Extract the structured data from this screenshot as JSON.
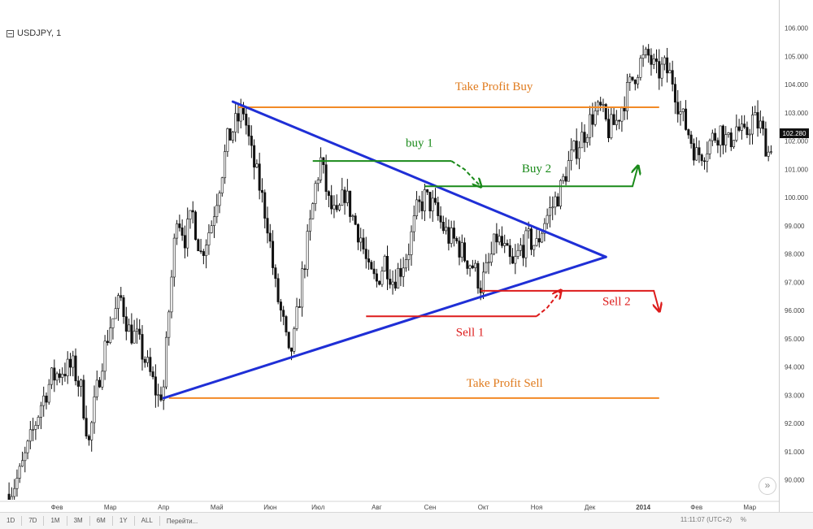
{
  "header": {
    "symbol": "USDJPY, 1",
    "collapse_icon": "minus-box-icon"
  },
  "chart_data": {
    "type": "candlestick",
    "ylim": [
      89.3,
      107.0
    ],
    "y_ticks": [
      "106.000",
      "105.000",
      "104.000",
      "103.000",
      "102.000",
      "101.000",
      "100.000",
      "99.000",
      "98.000",
      "97.000",
      "96.000",
      "95.000",
      "94.000",
      "93.000",
      "92.000",
      "91.000",
      "90.000"
    ],
    "y_tick_values": [
      106,
      105,
      104,
      103,
      102,
      101,
      100,
      99,
      98,
      97,
      96,
      95,
      94,
      93,
      92,
      91,
      90
    ],
    "x_ticks": [
      {
        "label": "Фев",
        "x": 2.1
      },
      {
        "label": "Мар",
        "x": 3.1
      },
      {
        "label": "Апр",
        "x": 4.1
      },
      {
        "label": "Май",
        "x": 5.1
      },
      {
        "label": "Июн",
        "x": 6.1
      },
      {
        "label": "Июл",
        "x": 7.0
      },
      {
        "label": "Авг",
        "x": 8.1
      },
      {
        "label": "Сен",
        "x": 9.1
      },
      {
        "label": "Окт",
        "x": 10.1
      },
      {
        "label": "Ноя",
        "x": 11.1
      },
      {
        "label": "Дек",
        "x": 12.1
      },
      {
        "label": "2014",
        "x": 13.1
      },
      {
        "label": "Фев",
        "x": 14.1
      },
      {
        "label": "Мар",
        "x": 15.1
      }
    ],
    "last_price": "102.280",
    "last_price_value": 102.28,
    "price_path": [
      [
        1.2,
        89.5
      ],
      [
        1.4,
        90.2
      ],
      [
        1.6,
        91.4
      ],
      [
        1.8,
        92.7
      ],
      [
        2.0,
        93.6
      ],
      [
        2.2,
        93.9
      ],
      [
        2.4,
        94.0
      ],
      [
        2.55,
        93.2
      ],
      [
        2.7,
        91.3
      ],
      [
        2.8,
        92.6
      ],
      [
        2.95,
        94.3
      ],
      [
        3.1,
        95.5
      ],
      [
        3.3,
        96.4
      ],
      [
        3.45,
        95.3
      ],
      [
        3.6,
        95.0
      ],
      [
        3.8,
        94.0
      ],
      [
        4.0,
        92.9
      ],
      [
        4.1,
        93.3
      ],
      [
        4.2,
        96.0
      ],
      [
        4.35,
        99.5
      ],
      [
        4.5,
        98.6
      ],
      [
        4.65,
        99.4
      ],
      [
        4.8,
        98.0
      ],
      [
        5.0,
        99.1
      ],
      [
        5.15,
        100.5
      ],
      [
        5.3,
        102.0
      ],
      [
        5.45,
        102.6
      ],
      [
        5.6,
        103.1
      ],
      [
        5.75,
        101.5
      ],
      [
        5.9,
        100.4
      ],
      [
        6.05,
        99.1
      ],
      [
        6.2,
        96.8
      ],
      [
        6.35,
        95.5
      ],
      [
        6.45,
        94.3
      ],
      [
        6.55,
        95.0
      ],
      [
        6.7,
        97.2
      ],
      [
        6.85,
        99.0
      ],
      [
        6.95,
        100.4
      ],
      [
        7.05,
        101.3
      ],
      [
        7.2,
        99.8
      ],
      [
        7.35,
        99.2
      ],
      [
        7.5,
        100.2
      ],
      [
        7.65,
        99.3
      ],
      [
        7.8,
        98.6
      ],
      [
        7.95,
        97.3
      ],
      [
        8.1,
        97.0
      ],
      [
        8.25,
        97.8
      ],
      [
        8.4,
        97.1
      ],
      [
        8.55,
        97.5
      ],
      [
        8.7,
        98.2
      ],
      [
        8.85,
        99.5
      ],
      [
        9.0,
        100.0
      ],
      [
        9.15,
        99.7
      ],
      [
        9.3,
        99.1
      ],
      [
        9.45,
        98.6
      ],
      [
        9.6,
        98.4
      ],
      [
        9.75,
        97.9
      ],
      [
        9.9,
        97.6
      ],
      [
        10.05,
        96.9
      ],
      [
        10.2,
        97.6
      ],
      [
        10.35,
        98.6
      ],
      [
        10.5,
        98.1
      ],
      [
        10.65,
        97.5
      ],
      [
        10.8,
        98.2
      ],
      [
        10.95,
        98.5
      ],
      [
        11.1,
        98.3
      ],
      [
        11.25,
        99.2
      ],
      [
        11.4,
        99.7
      ],
      [
        11.55,
        100.3
      ],
      [
        11.7,
        101.2
      ],
      [
        11.85,
        101.8
      ],
      [
        12.0,
        102.3
      ],
      [
        12.15,
        102.9
      ],
      [
        12.3,
        103.1
      ],
      [
        12.45,
        102.4
      ],
      [
        12.6,
        102.7
      ],
      [
        12.75,
        103.5
      ],
      [
        12.9,
        104.2
      ],
      [
        13.05,
        104.8
      ],
      [
        13.2,
        105.0
      ],
      [
        13.35,
        104.4
      ],
      [
        13.5,
        104.6
      ],
      [
        13.65,
        104.2
      ],
      [
        13.8,
        103.0
      ],
      [
        13.95,
        102.3
      ],
      [
        14.1,
        101.5
      ],
      [
        14.25,
        101.7
      ],
      [
        14.4,
        102.1
      ],
      [
        14.55,
        102.4
      ],
      [
        14.7,
        101.9
      ],
      [
        14.85,
        102.5
      ],
      [
        15.0,
        102.1
      ],
      [
        15.15,
        102.8
      ],
      [
        15.3,
        102.5
      ],
      [
        15.45,
        101.6
      ],
      [
        15.55,
        102.28
      ]
    ],
    "trendlines": [
      {
        "name": "upper-triangle-line",
        "color": "#1f2fd6",
        "from": [
          5.4,
          103.4
        ],
        "to": [
          12.4,
          97.9
        ]
      },
      {
        "name": "lower-triangle-line",
        "color": "#1f2fd6",
        "from": [
          4.1,
          92.9
        ],
        "to": [
          12.4,
          97.9
        ]
      }
    ],
    "levels": [
      {
        "name": "take-profit-buy-line",
        "color": "#f28a26",
        "y": 103.2,
        "x": [
          5.5,
          13.4
        ]
      },
      {
        "name": "take-profit-sell-line",
        "color": "#f28a26",
        "y": 92.9,
        "x": [
          4.2,
          13.4
        ]
      }
    ],
    "entry_paths": [
      {
        "name": "buy-1-path",
        "color": "#1a8a1a",
        "dashed": false,
        "points": [
          [
            6.9,
            101.3
          ],
          [
            9.5,
            101.3
          ]
        ]
      },
      {
        "name": "buy-1-dashed-arrow",
        "color": "#1a8a1a",
        "dashed": true,
        "arrow": true,
        "points": [
          [
            9.5,
            101.3
          ],
          [
            9.75,
            101.0
          ],
          [
            10.05,
            100.4
          ]
        ]
      },
      {
        "name": "buy-2-path",
        "color": "#1a8a1a",
        "dashed": false,
        "arrow": true,
        "points": [
          [
            9.0,
            100.4
          ],
          [
            12.9,
            100.4
          ],
          [
            13.0,
            101.1
          ]
        ]
      },
      {
        "name": "sell-1-path",
        "color": "#dd1b1b",
        "dashed": false,
        "points": [
          [
            7.9,
            95.8
          ],
          [
            11.1,
            95.8
          ]
        ]
      },
      {
        "name": "sell-1-dashed-arrow",
        "color": "#dd1b1b",
        "dashed": true,
        "arrow": true,
        "points": [
          [
            11.1,
            95.8
          ],
          [
            11.3,
            96.1
          ],
          [
            11.55,
            96.7
          ]
        ]
      },
      {
        "name": "sell-2-path",
        "color": "#dd1b1b",
        "dashed": false,
        "arrow": true,
        "points": [
          [
            10.05,
            96.7
          ],
          [
            13.3,
            96.7
          ],
          [
            13.4,
            96.0
          ]
        ]
      }
    ],
    "annotations": [
      {
        "name": "take-profit-buy-label",
        "text": "Take Profit Buy",
        "color": "#e07b1e",
        "x": 10.3,
        "y": 103.8
      },
      {
        "name": "buy-1-label",
        "text": "buy 1",
        "color": "#1a8a1a",
        "x": 8.9,
        "y": 101.8
      },
      {
        "name": "buy-2-label",
        "text": "Buy 2",
        "color": "#1a8a1a",
        "x": 11.1,
        "y": 100.9
      },
      {
        "name": "sell-2-label",
        "text": "Sell 2",
        "color": "#dd1b1b",
        "x": 12.6,
        "y": 96.2
      },
      {
        "name": "sell-1-label",
        "text": "Sell 1",
        "color": "#dd1b1b",
        "x": 9.85,
        "y": 95.1
      },
      {
        "name": "take-profit-sell-label",
        "text": "Take Profit Sell",
        "color": "#e07b1e",
        "x": 10.5,
        "y": 93.3
      }
    ]
  },
  "bottom_bar": {
    "ranges": [
      "1D",
      "7D",
      "1M",
      "3M",
      "6M",
      "1Y",
      "ALL"
    ],
    "goto_label": "Перейти...",
    "clock": "11:11:07 (UTC+2)",
    "percent_label": "%",
    "scroll_icon": "double-chevron-right-icon",
    "scroll_glyph": "»"
  }
}
